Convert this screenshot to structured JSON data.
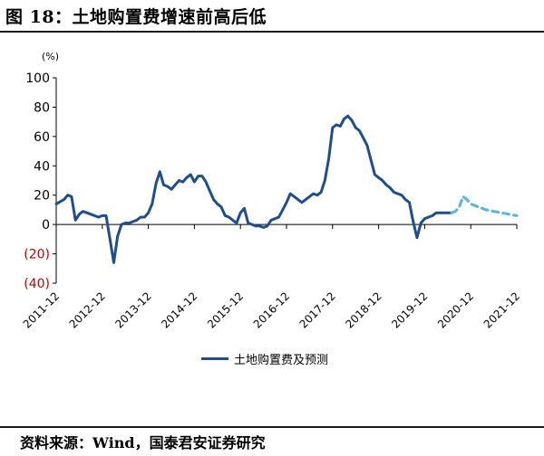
{
  "figure": {
    "title": "图 18：土地购置费增速前高后低",
    "source": "资料来源：Wind，国泰君安证券研究"
  },
  "chart_data": {
    "type": "line",
    "unit_label": "(%)",
    "ylim": [
      -40,
      100
    ],
    "y_ticks": [
      {
        "v": 100,
        "label": "100",
        "neg": false
      },
      {
        "v": 80,
        "label": "80",
        "neg": false
      },
      {
        "v": 60,
        "label": "60",
        "neg": false
      },
      {
        "v": 40,
        "label": "40",
        "neg": false
      },
      {
        "v": 20,
        "label": "20",
        "neg": false
      },
      {
        "v": 0,
        "label": "0",
        "neg": false
      },
      {
        "v": -20,
        "label": "(20)",
        "neg": true
      },
      {
        "v": -40,
        "label": "(40)",
        "neg": true
      }
    ],
    "x_ticks": [
      "2011-12",
      "2012-12",
      "2013-12",
      "2014-12",
      "2015-12",
      "2016-12",
      "2017-12",
      "2018-12",
      "2019-12",
      "2020-12",
      "2021-12"
    ],
    "x_range": [
      "2011-12",
      "2021-12"
    ],
    "colors": {
      "actual": "#1f4e8c",
      "forecast": "#5ab4e0",
      "negative_label": "#c00000"
    },
    "legend": {
      "label": "土地购置费及预测",
      "position": "bottom"
    },
    "series": [
      {
        "name": "土地购置费及预测",
        "style": "solid",
        "points": [
          [
            "2011-12",
            14
          ],
          [
            "2012-02",
            17
          ],
          [
            "2012-03",
            20
          ],
          [
            "2012-04",
            19
          ],
          [
            "2012-05",
            3
          ],
          [
            "2012-06",
            7
          ],
          [
            "2012-07",
            9
          ],
          [
            "2012-08",
            8
          ],
          [
            "2012-09",
            7
          ],
          [
            "2012-10",
            6
          ],
          [
            "2012-11",
            5
          ],
          [
            "2012-12",
            6
          ],
          [
            "2013-01",
            6
          ],
          [
            "2013-02",
            -10
          ],
          [
            "2013-03",
            -26
          ],
          [
            "2013-04",
            -8
          ],
          [
            "2013-05",
            0
          ],
          [
            "2013-06",
            1
          ],
          [
            "2013-07",
            1
          ],
          [
            "2013-08",
            2
          ],
          [
            "2013-09",
            3
          ],
          [
            "2013-10",
            5
          ],
          [
            "2013-11",
            5
          ],
          [
            "2013-12",
            8
          ],
          [
            "2014-01",
            14
          ],
          [
            "2014-02",
            28
          ],
          [
            "2014-03",
            36
          ],
          [
            "2014-04",
            27
          ],
          [
            "2014-05",
            26
          ],
          [
            "2014-06",
            24
          ],
          [
            "2014-07",
            27
          ],
          [
            "2014-08",
            30
          ],
          [
            "2014-09",
            29
          ],
          [
            "2014-10",
            32
          ],
          [
            "2014-11",
            34
          ],
          [
            "2014-12",
            29
          ],
          [
            "2015-01",
            33
          ],
          [
            "2015-02",
            33
          ],
          [
            "2015-03",
            29
          ],
          [
            "2015-04",
            23
          ],
          [
            "2015-05",
            17
          ],
          [
            "2015-06",
            14
          ],
          [
            "2015-07",
            12
          ],
          [
            "2015-08",
            6
          ],
          [
            "2015-09",
            5
          ],
          [
            "2015-10",
            3
          ],
          [
            "2015-11",
            1
          ],
          [
            "2015-12",
            8
          ],
          [
            "2016-01",
            11
          ],
          [
            "2016-02",
            1
          ],
          [
            "2016-03",
            0
          ],
          [
            "2016-04",
            -1
          ],
          [
            "2016-05",
            -1
          ],
          [
            "2016-06",
            -2
          ],
          [
            "2016-07",
            -1
          ],
          [
            "2016-08",
            3
          ],
          [
            "2016-09",
            4
          ],
          [
            "2016-10",
            5
          ],
          [
            "2016-11",
            10
          ],
          [
            "2016-12",
            15
          ],
          [
            "2017-01",
            21
          ],
          [
            "2017-02",
            19
          ],
          [
            "2017-03",
            17
          ],
          [
            "2017-04",
            15
          ],
          [
            "2017-05",
            17
          ],
          [
            "2017-06",
            19
          ],
          [
            "2017-07",
            21
          ],
          [
            "2017-08",
            20
          ],
          [
            "2017-09",
            22
          ],
          [
            "2017-10",
            30
          ],
          [
            "2017-11",
            45
          ],
          [
            "2017-12",
            66
          ],
          [
            "2018-01",
            68
          ],
          [
            "2018-02",
            67
          ],
          [
            "2018-03",
            72
          ],
          [
            "2018-04",
            74
          ],
          [
            "2018-05",
            71
          ],
          [
            "2018-06",
            66
          ],
          [
            "2018-07",
            64
          ],
          [
            "2018-08",
            59
          ],
          [
            "2018-09",
            54
          ],
          [
            "2018-10",
            44
          ],
          [
            "2018-11",
            34
          ],
          [
            "2018-12",
            32
          ],
          [
            "2019-01",
            30
          ],
          [
            "2019-02",
            27
          ],
          [
            "2019-03",
            25
          ],
          [
            "2019-04",
            22
          ],
          [
            "2019-05",
            21
          ],
          [
            "2019-06",
            20
          ],
          [
            "2019-07",
            17
          ],
          [
            "2019-08",
            15
          ],
          [
            "2019-09",
            2
          ],
          [
            "2019-10",
            -9
          ],
          [
            "2019-11",
            1
          ],
          [
            "2019-12",
            4
          ],
          [
            "2020-01",
            5
          ],
          [
            "2020-02",
            6
          ],
          [
            "2020-03",
            8
          ],
          [
            "2020-04",
            8
          ],
          [
            "2020-05",
            8
          ],
          [
            "2020-06",
            8
          ],
          [
            "2020-07",
            8
          ]
        ]
      },
      {
        "name": "",
        "style": "dashed",
        "points": [
          [
            "2020-07",
            8
          ],
          [
            "2020-08",
            9
          ],
          [
            "2020-09",
            12
          ],
          [
            "2020-10",
            19
          ],
          [
            "2020-11",
            17
          ],
          [
            "2020-12",
            14
          ],
          [
            "2021-02",
            12
          ],
          [
            "2021-04",
            10
          ],
          [
            "2021-06",
            9
          ],
          [
            "2021-08",
            8
          ],
          [
            "2021-10",
            7
          ],
          [
            "2021-12",
            6
          ]
        ]
      }
    ]
  }
}
